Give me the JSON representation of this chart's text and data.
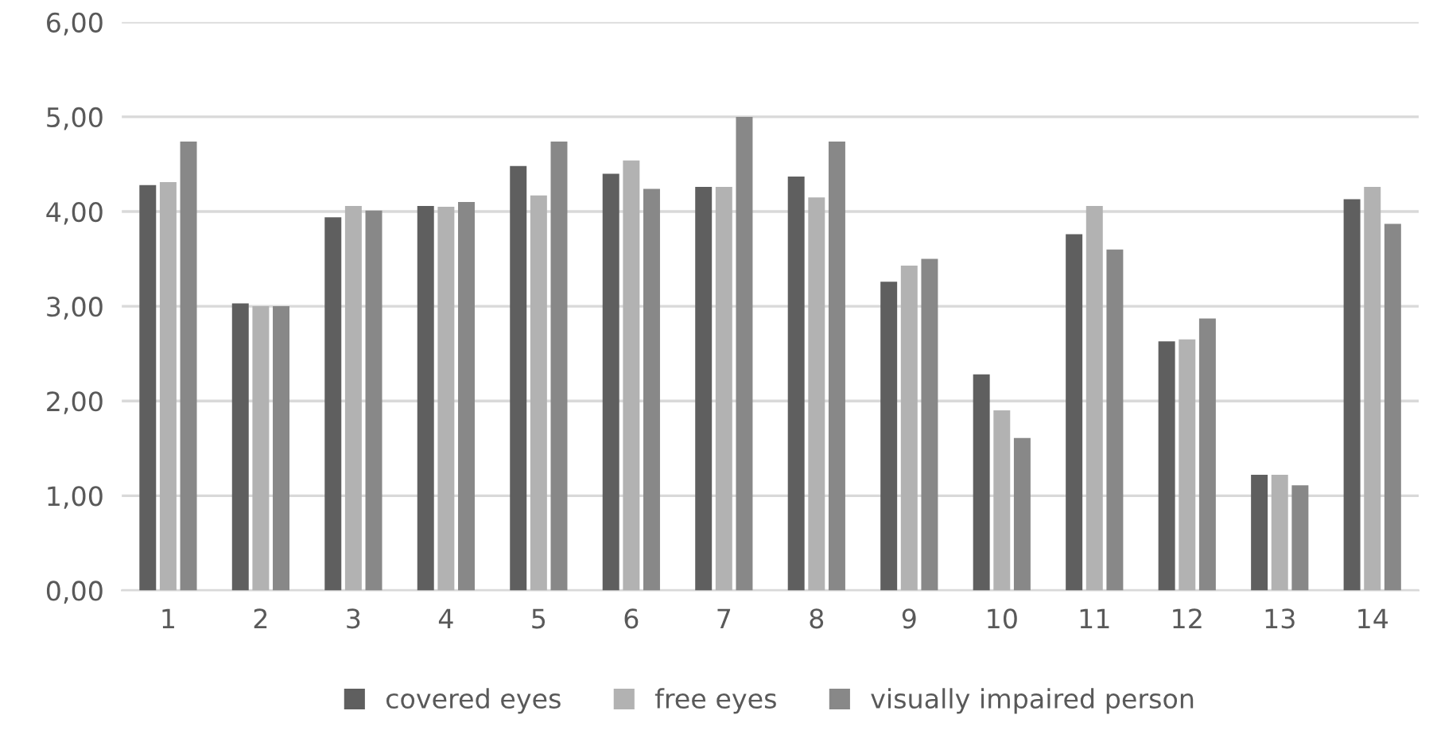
{
  "chart_data": {
    "type": "bar",
    "categories": [
      "1",
      "2",
      "3",
      "4",
      "5",
      "6",
      "7",
      "8",
      "9",
      "10",
      "11",
      "12",
      "13",
      "14"
    ],
    "series": [
      {
        "name": "covered eyes",
        "color": "#5f5f5f",
        "values": [
          4.28,
          3.03,
          3.94,
          4.06,
          4.48,
          4.4,
          4.26,
          4.37,
          3.26,
          2.28,
          3.76,
          2.63,
          1.22,
          4.13
        ]
      },
      {
        "name": "free eyes",
        "color": "#b2b2b2",
        "values": [
          4.31,
          3.0,
          4.06,
          4.05,
          4.17,
          4.54,
          4.26,
          4.15,
          3.43,
          1.9,
          4.06,
          2.65,
          1.22,
          4.26
        ]
      },
      {
        "name": "visually impaired person",
        "color": "#888888",
        "values": [
          4.74,
          3.0,
          4.01,
          4.1,
          4.74,
          4.24,
          5.0,
          4.74,
          3.5,
          1.61,
          3.6,
          2.87,
          1.11,
          3.87
        ]
      }
    ],
    "ylim": [
      0,
      6
    ],
    "yticks": [
      {
        "value": 0,
        "label": "0,00"
      },
      {
        "value": 1,
        "label": "1,00"
      },
      {
        "value": 2,
        "label": "2,00"
      },
      {
        "value": 3,
        "label": "3,00"
      },
      {
        "value": 4,
        "label": "4,00"
      },
      {
        "value": 5,
        "label": "5,00"
      },
      {
        "value": 6,
        "label": "6,00"
      }
    ],
    "grid": "y",
    "legend": "bottom"
  }
}
